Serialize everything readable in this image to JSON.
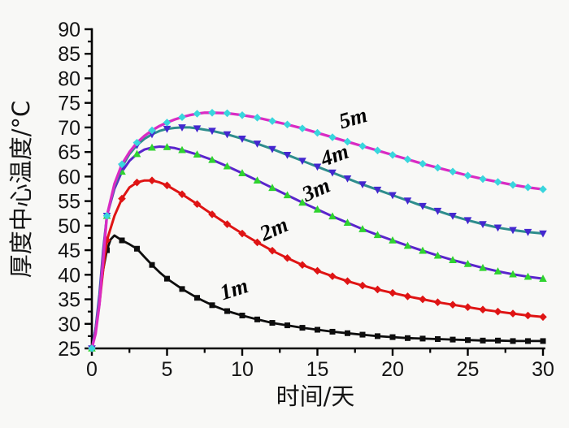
{
  "page": {
    "background": "#f8f8f6"
  },
  "chart_data": {
    "type": "line",
    "title": "",
    "xlabel": "时间/天",
    "ylabel": "厚度中心温度/°C",
    "xlim": [
      0,
      30
    ],
    "ylim": [
      25,
      90
    ],
    "x_major_ticks": [
      0,
      5,
      10,
      15,
      20,
      25,
      30
    ],
    "x_minor_step": 2.5,
    "y_major_ticks": [
      25,
      30,
      35,
      40,
      45,
      50,
      55,
      60,
      65,
      70,
      75,
      80,
      85,
      90
    ],
    "y_minor_step": 2.5,
    "grid": false,
    "legend": "inline curve labels",
    "axis_color": "#000000",
    "tick_label_color": "#141414",
    "marker_interval_days": 1,
    "series": [
      {
        "name": "1m",
        "line_color": "#0d0d0d",
        "marker": "square",
        "marker_color": "#0d0d0d",
        "line_width": 2.8,
        "peak": {
          "day": 1.5,
          "temp": 48
        },
        "x": [
          0,
          0.25,
          0.5,
          0.75,
          1,
          1.25,
          1.5,
          2,
          2.5,
          3,
          3.5,
          4,
          4.5,
          5,
          6,
          7,
          8,
          9,
          10,
          11,
          12,
          13,
          14,
          15,
          16,
          17,
          18,
          19,
          20,
          21,
          22,
          23,
          24,
          25,
          26,
          27,
          28,
          29,
          30
        ],
        "y": [
          25,
          29,
          35,
          41,
          45,
          47.2,
          48,
          47,
          46.2,
          45.3,
          43.6,
          42,
          40.5,
          39.2,
          37.1,
          35.3,
          33.8,
          32.6,
          31.7,
          30.9,
          30.2,
          29.7,
          29.2,
          28.8,
          28.4,
          28.1,
          27.8,
          27.5,
          27.3,
          27.1,
          27,
          26.9,
          26.8,
          26.7,
          26.6,
          26.6,
          26.5,
          26.5,
          26.5
        ]
      },
      {
        "name": "2m",
        "line_color": "#df1414",
        "marker": "diamond",
        "marker_color": "#df1414",
        "line_width": 3,
        "peak": {
          "day": 3.2,
          "temp": 59.2
        },
        "x": [
          0,
          0.25,
          0.5,
          0.75,
          1,
          1.5,
          2,
          2.5,
          3,
          3.5,
          4,
          4.5,
          5,
          6,
          7,
          8,
          9,
          10,
          11,
          12,
          13,
          14,
          15,
          16,
          17,
          18,
          19,
          20,
          21,
          22,
          23,
          24,
          25,
          26,
          27,
          28,
          29,
          30
        ],
        "y": [
          25,
          28.5,
          34,
          41,
          47,
          52,
          55.5,
          57.8,
          58.8,
          59.2,
          59.2,
          58.8,
          58.2,
          56.4,
          54.4,
          52.3,
          50.3,
          48.4,
          46.6,
          44.9,
          43.4,
          42,
          40.8,
          39.7,
          38.7,
          37.8,
          37,
          36.3,
          35.6,
          35,
          34.4,
          33.9,
          33.4,
          32.9,
          32.5,
          32.1,
          31.7,
          31.4
        ]
      },
      {
        "name": "3m",
        "line_color": "#5a25cc",
        "marker": "triangle-up",
        "marker_color": "#2fd32f",
        "line_width": 3,
        "peak": {
          "day": 4.5,
          "temp": 66
        },
        "x": [
          0,
          0.25,
          0.5,
          0.75,
          1,
          1.5,
          2,
          2.5,
          3,
          3.5,
          4,
          4.5,
          5,
          5.5,
          6,
          7,
          8,
          9,
          10,
          11,
          12,
          13,
          14,
          15,
          16,
          17,
          18,
          19,
          20,
          21,
          22,
          23,
          24,
          25,
          26,
          27,
          28,
          29,
          30
        ],
        "y": [
          25,
          29,
          36,
          45,
          52,
          57.5,
          61,
          63.2,
          64.6,
          65.5,
          65.9,
          66.1,
          66,
          65.8,
          65.4,
          64.5,
          63.4,
          62.1,
          60.7,
          59.2,
          57.7,
          56.2,
          54.7,
          53.3,
          51.9,
          50.6,
          49.3,
          48.1,
          47,
          45.9,
          44.9,
          43.9,
          43,
          42.2,
          41.4,
          40.7,
          40.1,
          39.6,
          39.2
        ]
      },
      {
        "name": "4m",
        "line_color": "#2e8d8d",
        "marker": "triangle-down",
        "marker_color": "#4427cf",
        "line_width": 3,
        "peak": {
          "day": 6.2,
          "temp": 70
        },
        "x": [
          0,
          0.25,
          0.5,
          0.75,
          1,
          1.5,
          2,
          2.5,
          3,
          3.5,
          4,
          4.5,
          5,
          5.5,
          6,
          6.5,
          7,
          8,
          9,
          10,
          11,
          12,
          13,
          14,
          15,
          16,
          17,
          18,
          19,
          20,
          21,
          22,
          23,
          24,
          25,
          26,
          27,
          28,
          29,
          30
        ],
        "y": [
          25,
          28.5,
          35,
          44,
          52,
          58,
          62,
          64.6,
          66.4,
          67.7,
          68.6,
          69.3,
          69.7,
          69.9,
          70,
          70,
          69.8,
          69.3,
          68.6,
          67.7,
          66.7,
          65.6,
          64.4,
          63.2,
          62,
          60.8,
          59.6,
          58.4,
          57.3,
          56.2,
          55.1,
          54,
          53,
          52,
          51.1,
          50.3,
          49.6,
          49.1,
          48.7,
          48.4
        ]
      },
      {
        "name": "5m",
        "line_color": "#d92bc4",
        "marker": "diamond",
        "marker_color": "#39d6dd",
        "line_width": 3.3,
        "peak": {
          "day": 7.5,
          "temp": 73
        },
        "x": [
          0,
          0.25,
          0.5,
          0.75,
          1,
          1.5,
          2,
          2.5,
          3,
          3.5,
          4,
          4.5,
          5,
          5.5,
          6,
          6.5,
          7,
          7.5,
          8,
          9,
          10,
          11,
          12,
          13,
          14,
          15,
          16,
          17,
          18,
          19,
          20,
          21,
          22,
          23,
          24,
          25,
          26,
          27,
          28,
          29,
          30
        ],
        "y": [
          25,
          28,
          34,
          43,
          52,
          58.5,
          62.5,
          65,
          66.9,
          68.3,
          69.4,
          70.3,
          71,
          71.6,
          72.1,
          72.5,
          72.8,
          73,
          73,
          72.9,
          72.5,
          72,
          71.3,
          70.6,
          69.8,
          68.9,
          68,
          67.1,
          66.2,
          65.3,
          64.4,
          63.5,
          62.6,
          61.8,
          61,
          60.2,
          59.5,
          58.9,
          58.3,
          57.8,
          57.4
        ]
      }
    ],
    "annotations": [
      {
        "text": "1m",
        "day": 9.6,
        "temp": 35.7,
        "rotate": -18
      },
      {
        "text": "2m",
        "day": 12.3,
        "temp": 48,
        "rotate": -24
      },
      {
        "text": "3m",
        "day": 15.1,
        "temp": 56,
        "rotate": -24
      },
      {
        "text": "4m",
        "day": 16.3,
        "temp": 63,
        "rotate": -20
      },
      {
        "text": "5m",
        "day": 17.5,
        "temp": 70.5,
        "rotate": -16
      }
    ]
  }
}
